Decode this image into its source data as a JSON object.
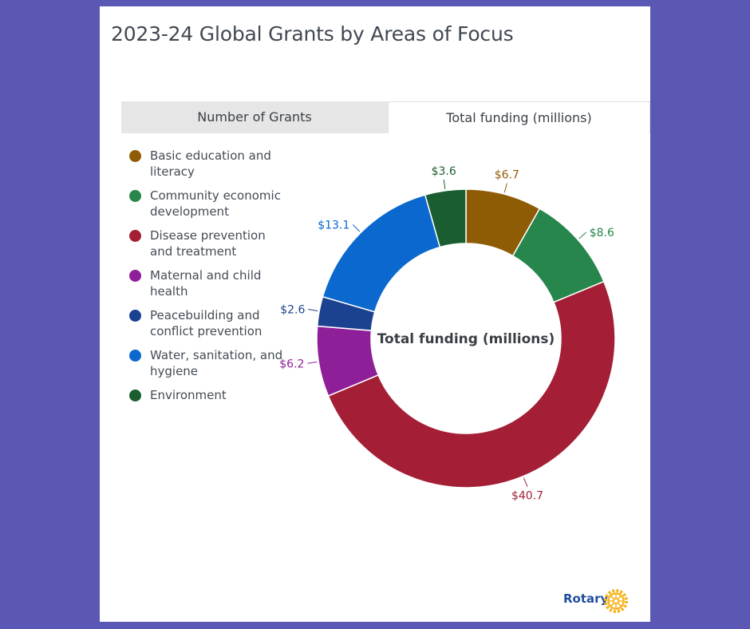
{
  "title": "2023-24 Global Grants by Areas of Focus",
  "tabs": {
    "count_label": "Number of Grants",
    "funding_label": "Total funding (millions)"
  },
  "logo": {
    "text": "Rotary"
  },
  "chart_data": {
    "type": "pie",
    "donut": true,
    "center_label": "Total funding (millions)",
    "legend_position": "left",
    "series": [
      {
        "name": "Basic education and literacy",
        "value": 6.7,
        "label": "$6.7",
        "color": "#8f5c06"
      },
      {
        "name": "Community economic development",
        "value": 8.6,
        "label": "$8.6",
        "color": "#27864b"
      },
      {
        "name": "Disease prevention and treatment",
        "value": 40.7,
        "label": "$40.7",
        "color": "#a41f35"
      },
      {
        "name": "Maternal and child health",
        "value": 6.2,
        "label": "$6.2",
        "color": "#8f1f98"
      },
      {
        "name": "Peacebuilding and conflict prevention",
        "value": 2.6,
        "label": "$2.6",
        "color": "#1b4290"
      },
      {
        "name": "Water, sanitation, and hygiene",
        "value": 13.1,
        "label": "$13.1",
        "color": "#0b68cf"
      },
      {
        "name": "Environment",
        "value": 3.6,
        "label": "$3.6",
        "color": "#1a5d30"
      }
    ]
  }
}
